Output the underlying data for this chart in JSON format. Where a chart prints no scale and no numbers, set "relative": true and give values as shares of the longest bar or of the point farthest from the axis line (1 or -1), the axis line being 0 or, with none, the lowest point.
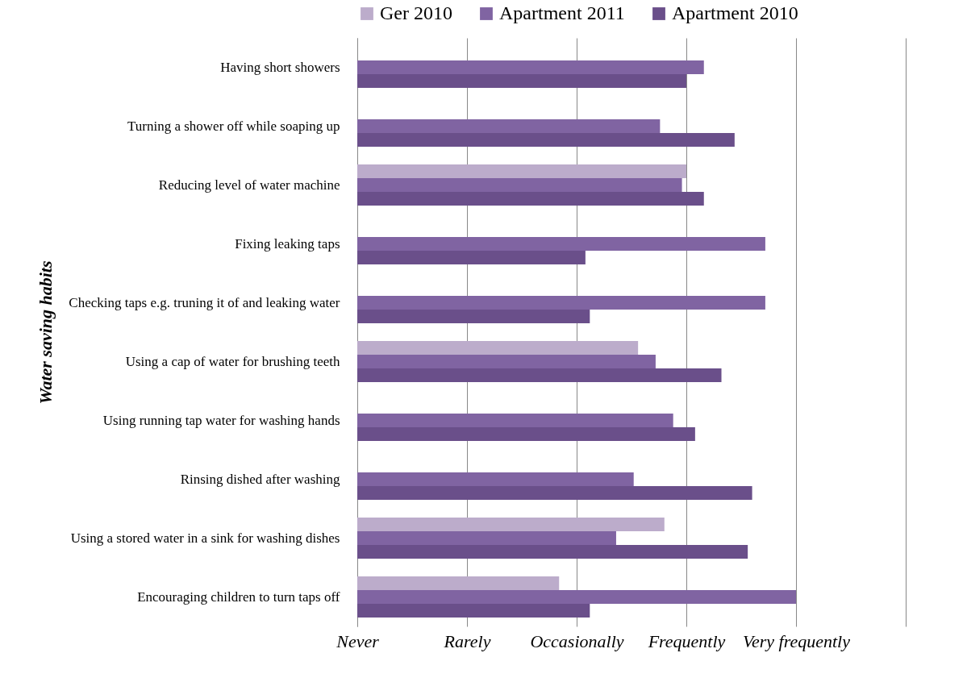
{
  "chart_data": {
    "type": "bar",
    "orientation": "horizontal",
    "relative": true,
    "ylabel": "Water saving habits",
    "categories": [
      "Having short showers",
      "Turning a shower off while soaping up",
      "Reducing level of water machine",
      "Fixing leaking taps",
      "Checking taps e.g. truning it of and leaking water",
      "Using a cap of water for brushing teeth",
      "Using running tap water for washing hands",
      "Rinsing dished after washing",
      "Using a stored water in a sink for washing dishes",
      "Encouraging children to turn taps off"
    ],
    "series": [
      {
        "name": "Ger 2010",
        "color": "#bcaccb",
        "values": [
          null,
          null,
          0.75,
          null,
          null,
          0.64,
          null,
          null,
          0.7,
          0.46
        ]
      },
      {
        "name": "Apartment 2011",
        "color": "#8064a2",
        "values": [
          0.79,
          0.69,
          0.74,
          0.93,
          0.93,
          0.68,
          0.72,
          0.63,
          0.59,
          1
        ]
      },
      {
        "name": "Apartment 2010",
        "color": "#6a4f8a",
        "values": [
          0.75,
          0.86,
          0.79,
          0.52,
          0.53,
          0.83,
          0.77,
          0.9,
          0.89,
          0.53
        ]
      }
    ],
    "annotations": [
      "Never",
      "Rarely",
      "Occasionally",
      "Frequently",
      "Very frequently"
    ],
    "grid": "x",
    "legend": "top"
  }
}
